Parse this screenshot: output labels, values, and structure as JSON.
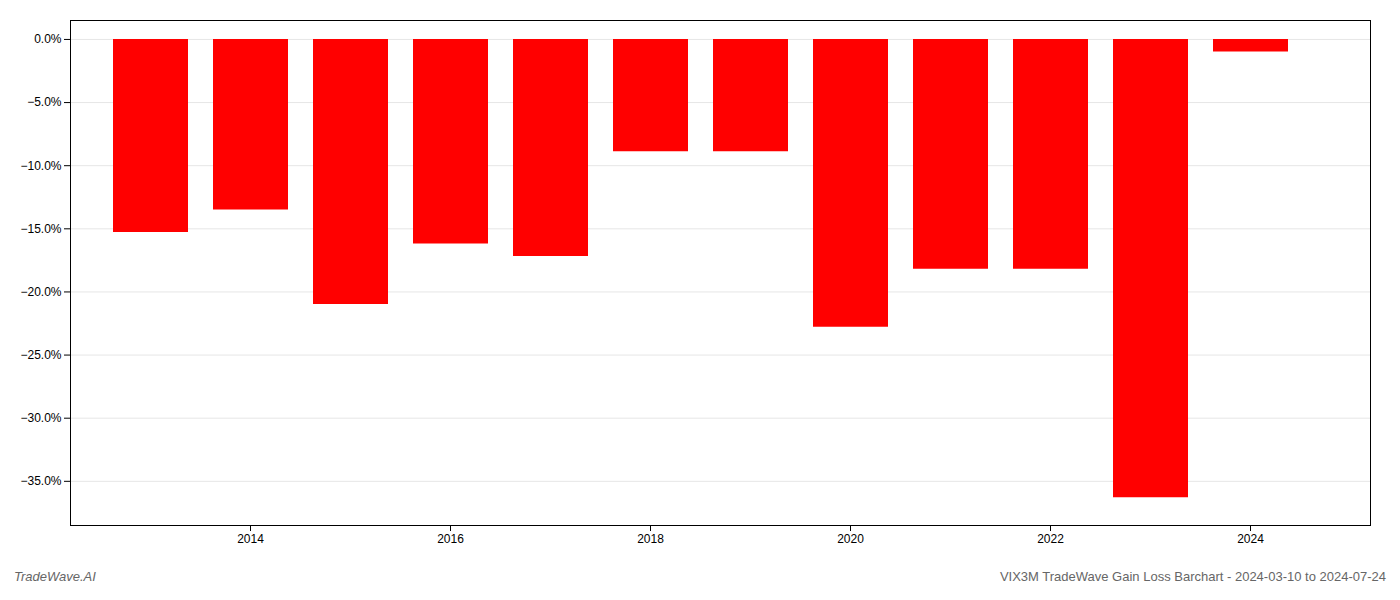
{
  "chart_data": {
    "type": "bar",
    "title": "VIX3M TradeWave Gain Loss Barchart - 2024-03-10 to 2024-07-24",
    "annotations": [
      "TradeWave.AI"
    ],
    "x": [
      2013,
      2014,
      2015,
      2016,
      2017,
      2018,
      2019,
      2020,
      2021,
      2022,
      2023,
      2024
    ],
    "values": [
      -0.153,
      -0.135,
      -0.21,
      -0.162,
      -0.172,
      -0.089,
      -0.089,
      -0.228,
      -0.182,
      -0.182,
      -0.363,
      -0.01
    ],
    "color": "#ff0000",
    "xlim": [
      2012.2,
      2025.2
    ],
    "xticks": [
      2014,
      2016,
      2018,
      2020,
      2022,
      2024
    ],
    "ylim": [
      -0.385,
      0.015
    ],
    "yticks": [
      {
        "value": 0.0,
        "label": "0.0%"
      },
      {
        "value": -0.05,
        "label": "−5.0%"
      },
      {
        "value": -0.1,
        "label": "−10.0%"
      },
      {
        "value": -0.15,
        "label": "−15.0%"
      },
      {
        "value": -0.2,
        "label": "−20.0%"
      },
      {
        "value": -0.25,
        "label": "−25.0%"
      },
      {
        "value": -0.3,
        "label": "−30.0%"
      },
      {
        "value": -0.35,
        "label": "−35.0%"
      }
    ],
    "grid": true
  }
}
